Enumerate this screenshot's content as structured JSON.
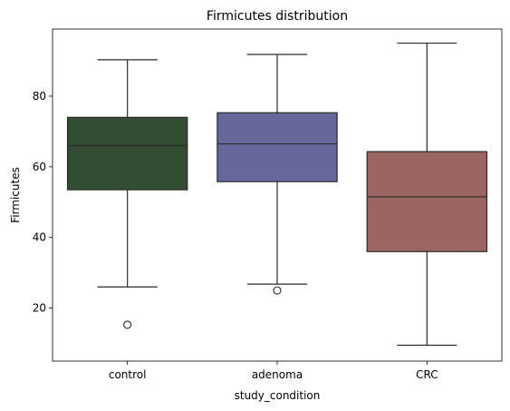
{
  "chart_data": {
    "type": "box",
    "title": "Firmicutes distribution",
    "xlabel": "study_condition",
    "ylabel": "Firmicutes",
    "categories": [
      "control",
      "adenoma",
      "CRC"
    ],
    "ylim": [
      5,
      99
    ],
    "yticks": [
      20,
      40,
      60,
      80
    ],
    "grid": false,
    "legend": "none",
    "boxes": [
      {
        "category": "control",
        "whisker_low": 26.0,
        "q1": 53.5,
        "median": 66.0,
        "q3": 74.0,
        "whisker_high": 90.3,
        "outliers": [
          15.3
        ],
        "color": "#324d31"
      },
      {
        "category": "adenoma",
        "whisker_low": 26.8,
        "q1": 55.8,
        "median": 66.5,
        "q3": 75.3,
        "whisker_high": 91.8,
        "outliers": [
          25.0
        ],
        "color": "#67679c"
      },
      {
        "category": "CRC",
        "whisker_low": 9.5,
        "q1": 36.0,
        "median": 51.5,
        "q3": 64.3,
        "whisker_high": 95.0,
        "outliers": [],
        "color": "#9b6561"
      }
    ]
  }
}
